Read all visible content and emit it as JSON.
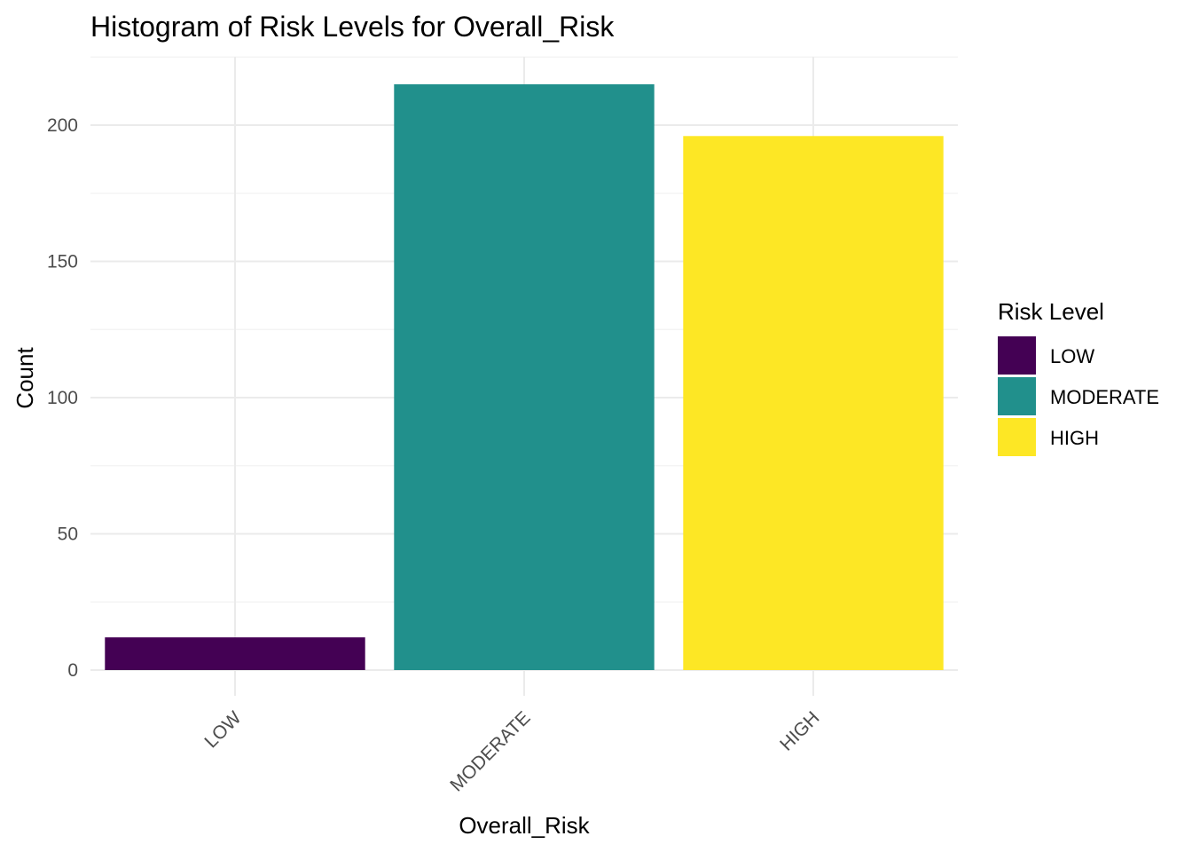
{
  "chart_data": {
    "type": "bar",
    "title": "Histogram of Risk Levels for Overall_Risk",
    "xlabel": "Overall_Risk",
    "ylabel": "Count",
    "categories": [
      "LOW",
      "MODERATE",
      "HIGH"
    ],
    "values": [
      12,
      215,
      196
    ],
    "colors": [
      "#440154",
      "#21908C",
      "#FDE725"
    ],
    "ylim": [
      0,
      225
    ],
    "yticks": [
      0,
      50,
      100,
      150,
      200
    ],
    "grid": true,
    "legend": {
      "title": "Risk Level",
      "placement": "right",
      "entries": [
        "LOW",
        "MODERATE",
        "HIGH"
      ]
    }
  }
}
